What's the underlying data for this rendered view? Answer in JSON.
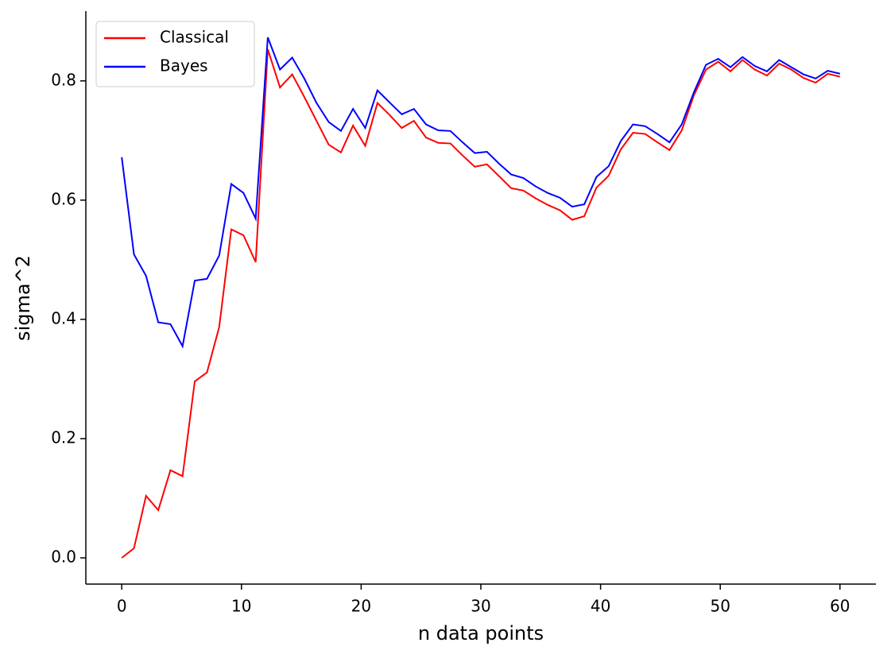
{
  "chart_data": {
    "type": "line",
    "xlabel": "n data points",
    "ylabel": "sigma^2",
    "x": [
      0,
      1.02,
      2.03,
      3.05,
      4.07,
      5.08,
      6.1,
      7.12,
      8.14,
      9.15,
      10.17,
      11.19,
      12.2,
      13.22,
      14.24,
      15.25,
      16.27,
      17.29,
      18.31,
      19.32,
      20.34,
      21.36,
      22.37,
      23.39,
      24.41,
      25.42,
      26.44,
      27.46,
      28.47,
      29.49,
      30.51,
      31.53,
      32.54,
      33.56,
      34.58,
      35.59,
      36.61,
      37.63,
      38.64,
      39.66,
      40.68,
      41.69,
      42.71,
      43.73,
      44.75,
      45.76,
      46.78,
      47.8,
      48.81,
      49.83,
      50.85,
      51.86,
      52.88,
      53.9,
      54.92,
      55.93,
      56.95,
      57.97,
      58.98,
      60
    ],
    "series": [
      {
        "name": "Classical",
        "color": "#ff0000",
        "values": [
          0.0,
          0.016,
          0.104,
          0.08,
          0.147,
          0.137,
          0.296,
          0.311,
          0.387,
          0.551,
          0.541,
          0.496,
          0.853,
          0.789,
          0.811,
          0.773,
          0.733,
          0.693,
          0.68,
          0.725,
          0.691,
          0.763,
          0.743,
          0.721,
          0.733,
          0.705,
          0.696,
          0.695,
          0.675,
          0.656,
          0.66,
          0.64,
          0.62,
          0.616,
          0.603,
          0.592,
          0.583,
          0.567,
          0.573,
          0.621,
          0.641,
          0.685,
          0.713,
          0.711,
          0.697,
          0.684,
          0.717,
          0.776,
          0.819,
          0.832,
          0.816,
          0.835,
          0.819,
          0.809,
          0.829,
          0.819,
          0.805,
          0.797,
          0.812,
          0.807
        ]
      },
      {
        "name": "Bayes",
        "color": "#0000ff",
        "values": [
          0.672,
          0.509,
          0.473,
          0.395,
          0.392,
          0.355,
          0.465,
          0.468,
          0.507,
          0.627,
          0.612,
          0.569,
          0.873,
          0.819,
          0.839,
          0.804,
          0.763,
          0.731,
          0.716,
          0.753,
          0.721,
          0.784,
          0.764,
          0.744,
          0.753,
          0.727,
          0.717,
          0.716,
          0.697,
          0.679,
          0.681,
          0.661,
          0.643,
          0.637,
          0.623,
          0.612,
          0.604,
          0.589,
          0.593,
          0.639,
          0.657,
          0.699,
          0.727,
          0.724,
          0.711,
          0.697,
          0.727,
          0.781,
          0.827,
          0.837,
          0.823,
          0.84,
          0.825,
          0.816,
          0.835,
          0.823,
          0.811,
          0.804,
          0.817,
          0.812
        ]
      }
    ],
    "xlim": [
      -3,
      63
    ],
    "ylim": [
      -0.044,
      0.917
    ],
    "xticks": [
      0,
      10,
      20,
      30,
      40,
      50,
      60
    ],
    "yticks": [
      {
        "value": 0,
        "label": "0.0"
      },
      0.2,
      0.4,
      0.6,
      0.8
    ],
    "grid": false,
    "legend": "upper left"
  }
}
